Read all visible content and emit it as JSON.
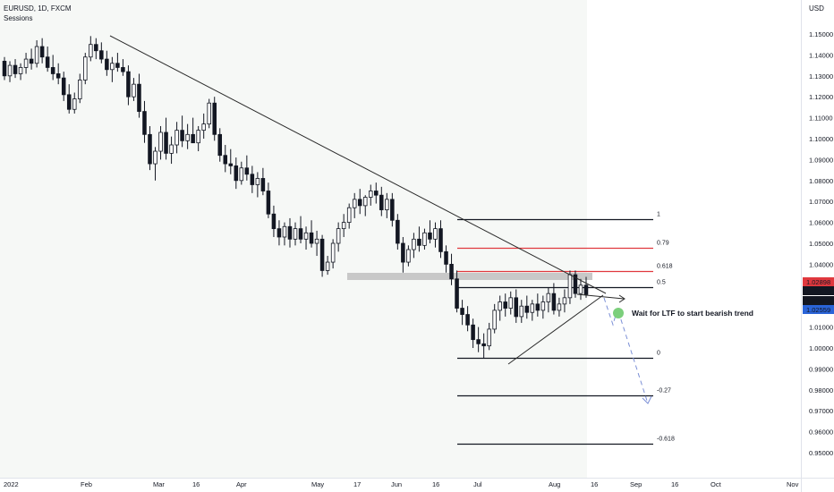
{
  "header": {
    "symbol": "EURUSD, 1D, FXCM",
    "indicator": "Sessions"
  },
  "chart_data": {
    "type": "candlestick",
    "currency": "USD",
    "y_range": [
      0.94636,
      1.16
    ],
    "y_ticks": [
      0.95,
      0.96,
      0.97,
      0.98,
      0.99,
      1.0,
      1.01,
      1.02,
      1.03,
      1.04,
      1.05,
      1.06,
      1.07,
      1.08,
      1.09,
      1.1,
      1.11,
      1.12,
      1.13,
      1.14,
      1.15
    ],
    "y_tick_labels": [
      "0.95000",
      "0.96000",
      "0.97000",
      "0.98000",
      "0.99000",
      "1.00000",
      "1.01000",
      "1.02000",
      "1.03000",
      "1.04000",
      "1.05000",
      "1.06000",
      "1.07000",
      "1.08000",
      "1.09000",
      "1.10000",
      "1.11000",
      "1.12000",
      "1.13000",
      "1.14000",
      "1.15000"
    ],
    "x_tick_labels": [
      "2022",
      "Feb",
      "Mar",
      "16",
      "Apr",
      "May",
      "17",
      "Jun",
      "16",
      "Jul",
      "Aug",
      "16",
      "Sep",
      "16",
      "Oct",
      "Nov"
    ],
    "price_badges": [
      {
        "value": "1.02898",
        "color": "#e0383e"
      },
      {
        "value": "1.02830",
        "color": "#131722"
      },
      {
        "value": "1.02568",
        "color": "#131722"
      },
      {
        "value": "1.02559",
        "color": "#2a64d8"
      }
    ],
    "fibonacci": {
      "levels": [
        {
          "label": "1",
          "value": 1.0616,
          "color": "#131722"
        },
        {
          "label": "0.79",
          "value": 1.0477,
          "color": "#e0383e"
        },
        {
          "label": "0.618",
          "value": 1.0367,
          "color": "#e0383e"
        },
        {
          "label": "0.5",
          "value": 1.0289,
          "color": "#131722"
        },
        {
          "label": "0",
          "value": 0.9952,
          "color": "#131722"
        },
        {
          "label": "-0.27",
          "value": 0.9773,
          "color": "#131722"
        },
        {
          "label": "-0.618",
          "value": 0.9544,
          "color": "#131722"
        }
      ]
    },
    "annotation": "Wait for LTF to start bearish trend",
    "colors": {
      "up": "#ffffff",
      "down": "#131722",
      "zone": "#c8c8c8",
      "projection": "#7b8fd6",
      "marker": "#7ccf7c"
    },
    "candles": [
      {
        "o": 1.137,
        "h": 1.139,
        "l": 1.128,
        "c": 1.13
      },
      {
        "o": 1.13,
        "h": 1.137,
        "l": 1.127,
        "c": 1.135
      },
      {
        "o": 1.135,
        "h": 1.138,
        "l": 1.129,
        "c": 1.131
      },
      {
        "o": 1.131,
        "h": 1.136,
        "l": 1.128,
        "c": 1.134
      },
      {
        "o": 1.134,
        "h": 1.141,
        "l": 1.131,
        "c": 1.138
      },
      {
        "o": 1.138,
        "h": 1.143,
        "l": 1.133,
        "c": 1.136
      },
      {
        "o": 1.136,
        "h": 1.147,
        "l": 1.134,
        "c": 1.144
      },
      {
        "o": 1.144,
        "h": 1.148,
        "l": 1.136,
        "c": 1.139
      },
      {
        "o": 1.139,
        "h": 1.144,
        "l": 1.132,
        "c": 1.134
      },
      {
        "o": 1.134,
        "h": 1.14,
        "l": 1.128,
        "c": 1.131
      },
      {
        "o": 1.131,
        "h": 1.136,
        "l": 1.126,
        "c": 1.129
      },
      {
        "o": 1.129,
        "h": 1.132,
        "l": 1.118,
        "c": 1.121
      },
      {
        "o": 1.121,
        "h": 1.126,
        "l": 1.112,
        "c": 1.114
      },
      {
        "o": 1.114,
        "h": 1.122,
        "l": 1.112,
        "c": 1.119
      },
      {
        "o": 1.119,
        "h": 1.131,
        "l": 1.117,
        "c": 1.128
      },
      {
        "o": 1.128,
        "h": 1.141,
        "l": 1.126,
        "c": 1.139
      },
      {
        "o": 1.139,
        "h": 1.149,
        "l": 1.137,
        "c": 1.145
      },
      {
        "o": 1.145,
        "h": 1.148,
        "l": 1.138,
        "c": 1.142
      },
      {
        "o": 1.142,
        "h": 1.146,
        "l": 1.136,
        "c": 1.138
      },
      {
        "o": 1.138,
        "h": 1.142,
        "l": 1.13,
        "c": 1.133
      },
      {
        "o": 1.133,
        "h": 1.139,
        "l": 1.127,
        "c": 1.136
      },
      {
        "o": 1.136,
        "h": 1.141,
        "l": 1.132,
        "c": 1.134
      },
      {
        "o": 1.134,
        "h": 1.138,
        "l": 1.13,
        "c": 1.132
      },
      {
        "o": 1.132,
        "h": 1.135,
        "l": 1.116,
        "c": 1.12
      },
      {
        "o": 1.12,
        "h": 1.129,
        "l": 1.118,
        "c": 1.126
      },
      {
        "o": 1.126,
        "h": 1.131,
        "l": 1.11,
        "c": 1.113
      },
      {
        "o": 1.113,
        "h": 1.118,
        "l": 1.098,
        "c": 1.102
      },
      {
        "o": 1.102,
        "h": 1.106,
        "l": 1.085,
        "c": 1.088
      },
      {
        "o": 1.088,
        "h": 1.096,
        "l": 1.08,
        "c": 1.094
      },
      {
        "o": 1.094,
        "h": 1.106,
        "l": 1.09,
        "c": 1.103
      },
      {
        "o": 1.103,
        "h": 1.11,
        "l": 1.09,
        "c": 1.093
      },
      {
        "o": 1.093,
        "h": 1.101,
        "l": 1.088,
        "c": 1.097
      },
      {
        "o": 1.097,
        "h": 1.108,
        "l": 1.093,
        "c": 1.104
      },
      {
        "o": 1.104,
        "h": 1.111,
        "l": 1.096,
        "c": 1.099
      },
      {
        "o": 1.099,
        "h": 1.107,
        "l": 1.095,
        "c": 1.102
      },
      {
        "o": 1.102,
        "h": 1.11,
        "l": 1.098,
        "c": 1.098
      },
      {
        "o": 1.098,
        "h": 1.106,
        "l": 1.094,
        "c": 1.104
      },
      {
        "o": 1.104,
        "h": 1.112,
        "l": 1.1,
        "c": 1.107
      },
      {
        "o": 1.107,
        "h": 1.119,
        "l": 1.105,
        "c": 1.117
      },
      {
        "o": 1.117,
        "h": 1.12,
        "l": 1.099,
        "c": 1.102
      },
      {
        "o": 1.102,
        "h": 1.105,
        "l": 1.089,
        "c": 1.092
      },
      {
        "o": 1.092,
        "h": 1.097,
        "l": 1.084,
        "c": 1.088
      },
      {
        "o": 1.088,
        "h": 1.095,
        "l": 1.083,
        "c": 1.087
      },
      {
        "o": 1.087,
        "h": 1.091,
        "l": 1.076,
        "c": 1.08
      },
      {
        "o": 1.08,
        "h": 1.089,
        "l": 1.078,
        "c": 1.086
      },
      {
        "o": 1.086,
        "h": 1.092,
        "l": 1.08,
        "c": 1.083
      },
      {
        "o": 1.083,
        "h": 1.087,
        "l": 1.074,
        "c": 1.078
      },
      {
        "o": 1.078,
        "h": 1.084,
        "l": 1.072,
        "c": 1.081
      },
      {
        "o": 1.081,
        "h": 1.086,
        "l": 1.073,
        "c": 1.075
      },
      {
        "o": 1.075,
        "h": 1.079,
        "l": 1.062,
        "c": 1.064
      },
      {
        "o": 1.064,
        "h": 1.068,
        "l": 1.053,
        "c": 1.057
      },
      {
        "o": 1.057,
        "h": 1.061,
        "l": 1.049,
        "c": 1.053
      },
      {
        "o": 1.053,
        "h": 1.06,
        "l": 1.049,
        "c": 1.058
      },
      {
        "o": 1.058,
        "h": 1.062,
        "l": 1.048,
        "c": 1.052
      },
      {
        "o": 1.052,
        "h": 1.06,
        "l": 1.049,
        "c": 1.057
      },
      {
        "o": 1.057,
        "h": 1.063,
        "l": 1.05,
        "c": 1.052
      },
      {
        "o": 1.052,
        "h": 1.058,
        "l": 1.047,
        "c": 1.055
      },
      {
        "o": 1.055,
        "h": 1.061,
        "l": 1.048,
        "c": 1.05
      },
      {
        "o": 1.05,
        "h": 1.056,
        "l": 1.044,
        "c": 1.052
      },
      {
        "o": 1.052,
        "h": 1.054,
        "l": 1.034,
        "c": 1.037
      },
      {
        "o": 1.037,
        "h": 1.044,
        "l": 1.035,
        "c": 1.041
      },
      {
        "o": 1.041,
        "h": 1.052,
        "l": 1.038,
        "c": 1.05
      },
      {
        "o": 1.05,
        "h": 1.06,
        "l": 1.046,
        "c": 1.057
      },
      {
        "o": 1.057,
        "h": 1.064,
        "l": 1.053,
        "c": 1.06
      },
      {
        "o": 1.06,
        "h": 1.069,
        "l": 1.057,
        "c": 1.067
      },
      {
        "o": 1.067,
        "h": 1.074,
        "l": 1.062,
        "c": 1.071
      },
      {
        "o": 1.071,
        "h": 1.076,
        "l": 1.064,
        "c": 1.068
      },
      {
        "o": 1.068,
        "h": 1.073,
        "l": 1.063,
        "c": 1.072
      },
      {
        "o": 1.072,
        "h": 1.078,
        "l": 1.068,
        "c": 1.075
      },
      {
        "o": 1.075,
        "h": 1.079,
        "l": 1.069,
        "c": 1.073
      },
      {
        "o": 1.073,
        "h": 1.077,
        "l": 1.063,
        "c": 1.066
      },
      {
        "o": 1.066,
        "h": 1.074,
        "l": 1.062,
        "c": 1.071
      },
      {
        "o": 1.071,
        "h": 1.074,
        "l": 1.058,
        "c": 1.061
      },
      {
        "o": 1.061,
        "h": 1.064,
        "l": 1.047,
        "c": 1.05
      },
      {
        "o": 1.05,
        "h": 1.053,
        "l": 1.036,
        "c": 1.041
      },
      {
        "o": 1.041,
        "h": 1.049,
        "l": 1.039,
        "c": 1.047
      },
      {
        "o": 1.047,
        "h": 1.055,
        "l": 1.043,
        "c": 1.052
      },
      {
        "o": 1.052,
        "h": 1.058,
        "l": 1.046,
        "c": 1.049
      },
      {
        "o": 1.049,
        "h": 1.057,
        "l": 1.047,
        "c": 1.055
      },
      {
        "o": 1.055,
        "h": 1.061,
        "l": 1.05,
        "c": 1.052
      },
      {
        "o": 1.052,
        "h": 1.06,
        "l": 1.048,
        "c": 1.057
      },
      {
        "o": 1.057,
        "h": 1.061,
        "l": 1.043,
        "c": 1.046
      },
      {
        "o": 1.046,
        "h": 1.049,
        "l": 1.036,
        "c": 1.04
      },
      {
        "o": 1.04,
        "h": 1.045,
        "l": 1.03,
        "c": 1.033
      },
      {
        "o": 1.033,
        "h": 1.037,
        "l": 1.017,
        "c": 1.019
      },
      {
        "o": 1.019,
        "h": 1.023,
        "l": 1.011,
        "c": 1.016
      },
      {
        "o": 1.016,
        "h": 1.02,
        "l": 1.008,
        "c": 1.011
      },
      {
        "o": 1.011,
        "h": 1.014,
        "l": 1.0,
        "c": 1.004
      },
      {
        "o": 1.004,
        "h": 1.01,
        "l": 0.998,
        "c": 1.002
      },
      {
        "o": 1.002,
        "h": 1.007,
        "l": 0.995,
        "c": 1.001
      },
      {
        "o": 1.001,
        "h": 1.012,
        "l": 0.999,
        "c": 1.009
      },
      {
        "o": 1.009,
        "h": 1.021,
        "l": 1.007,
        "c": 1.018
      },
      {
        "o": 1.018,
        "h": 1.025,
        "l": 1.013,
        "c": 1.022
      },
      {
        "o": 1.022,
        "h": 1.026,
        "l": 1.015,
        "c": 1.019
      },
      {
        "o": 1.019,
        "h": 1.027,
        "l": 1.016,
        "c": 1.024
      },
      {
        "o": 1.024,
        "h": 1.028,
        "l": 1.012,
        "c": 1.015
      },
      {
        "o": 1.015,
        "h": 1.023,
        "l": 1.012,
        "c": 1.02
      },
      {
        "o": 1.02,
        "h": 1.025,
        "l": 1.014,
        "c": 1.017
      },
      {
        "o": 1.017,
        "h": 1.023,
        "l": 1.013,
        "c": 1.021
      },
      {
        "o": 1.021,
        "h": 1.026,
        "l": 1.015,
        "c": 1.018
      },
      {
        "o": 1.018,
        "h": 1.025,
        "l": 1.014,
        "c": 1.022
      },
      {
        "o": 1.022,
        "h": 1.029,
        "l": 1.017,
        "c": 1.026
      },
      {
        "o": 1.026,
        "h": 1.031,
        "l": 1.016,
        "c": 1.018
      },
      {
        "o": 1.018,
        "h": 1.024,
        "l": 1.015,
        "c": 1.021
      },
      {
        "o": 1.021,
        "h": 1.028,
        "l": 1.017,
        "c": 1.024
      },
      {
        "o": 1.024,
        "h": 1.037,
        "l": 1.021,
        "c": 1.035
      },
      {
        "o": 1.035,
        "h": 1.037,
        "l": 1.024,
        "c": 1.026
      },
      {
        "o": 1.026,
        "h": 1.033,
        "l": 1.023,
        "c": 1.03
      },
      {
        "o": 1.03,
        "h": 1.034,
        "l": 1.024,
        "c": 1.0256
      }
    ]
  }
}
